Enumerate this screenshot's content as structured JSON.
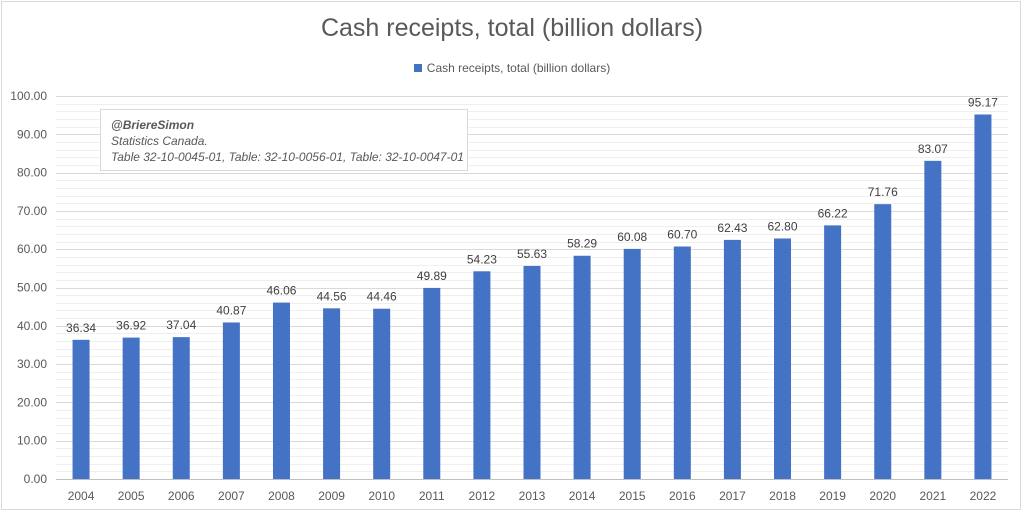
{
  "chart_data": {
    "type": "bar",
    "title": "Cash receipts, total (billion dollars)",
    "legend": {
      "position": "top",
      "entries": [
        "Cash receipts, total (billion dollars)"
      ]
    },
    "categories": [
      "2004",
      "2005",
      "2006",
      "2007",
      "2008",
      "2009",
      "2010",
      "2011",
      "2012",
      "2013",
      "2014",
      "2015",
      "2016",
      "2017",
      "2018",
      "2019",
      "2020",
      "2021",
      "2022"
    ],
    "series": [
      {
        "name": "Cash receipts, total (billion dollars)",
        "color": "#4472c4",
        "values": [
          36.34,
          36.92,
          37.04,
          40.87,
          46.06,
          44.56,
          44.46,
          49.89,
          54.23,
          55.63,
          58.29,
          60.08,
          60.7,
          62.43,
          62.8,
          66.22,
          71.76,
          83.07,
          95.17
        ],
        "labels": [
          "36.34",
          "36.92",
          "37.04",
          "40.87",
          "46.06",
          "44.56",
          "44.46",
          "49.89",
          "54.23",
          "55.63",
          "58.29",
          "60.08",
          "60.70",
          "62.43",
          "62.80",
          "66.22",
          "71.76",
          "83.07",
          "95.17"
        ]
      }
    ],
    "ylim": [
      0,
      100
    ],
    "yticks": [
      "0.00",
      "10.00",
      "20.00",
      "30.00",
      "40.00",
      "50.00",
      "60.00",
      "70.00",
      "80.00",
      "90.00",
      "100.00"
    ],
    "grid": true,
    "xlabel": "",
    "ylabel": "",
    "annotation": {
      "author": "@BriereSimon",
      "source": "Statistics Canada.",
      "tables": "Table 32-10-0045-01, Table: 32-10-0056-01, Table: 32-10-0047-01"
    }
  }
}
